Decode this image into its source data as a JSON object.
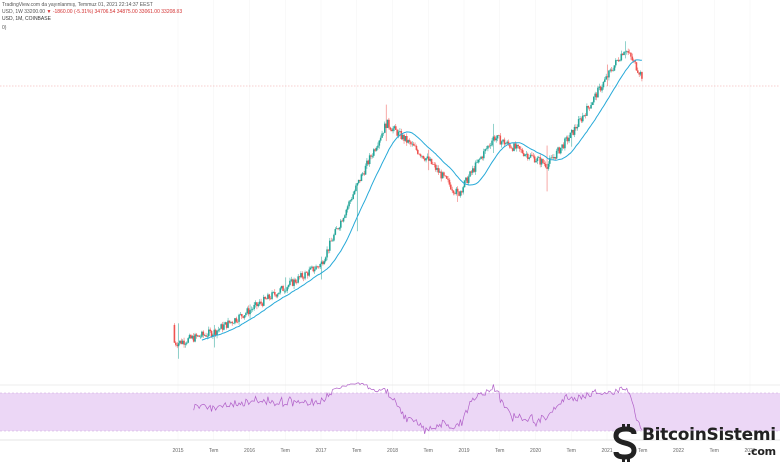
{
  "header": {
    "line1": "TradingView.com da yayınlanmış, Temmuz 01, 2021 22:14:37 EEST",
    "line2_prefix": "USD, 1W 33200.00",
    "line2_change": "▼ -1860.00 (-5.31%)",
    "line2_o": "34706.54",
    "line2_h": "34875.00",
    "line2_l": "33061.00",
    "line2_c": "33208.83",
    "line3": "USD, 1M, COINBASE",
    "line4": "0)"
  },
  "chart_data": {
    "type": "candlestick",
    "title": "",
    "xlabel": "",
    "ylabel": "",
    "y_scale": "log",
    "interval": "1W",
    "exchange": "COINBASE",
    "last_price_line": 33200,
    "x_ticks": [
      "2015",
      "Tem",
      "2016",
      "Tem",
      "2017",
      "Tem",
      "2018",
      "Tem",
      "2019",
      "Tem",
      "2020",
      "Tem",
      "2021",
      "Tem",
      "2022",
      "Tem",
      "2023"
    ],
    "ohlc_approx": [
      {
        "t": "2015-01",
        "o": 320,
        "h": 330,
        "l": 170,
        "c": 230
      },
      {
        "t": "2015-07",
        "o": 260,
        "h": 320,
        "l": 210,
        "c": 280
      },
      {
        "t": "2016-01",
        "o": 430,
        "h": 470,
        "l": 360,
        "c": 420
      },
      {
        "t": "2016-07",
        "o": 620,
        "h": 780,
        "l": 580,
        "c": 650
      },
      {
        "t": "2017-01",
        "o": 960,
        "h": 1150,
        "l": 750,
        "c": 1000
      },
      {
        "t": "2017-07",
        "o": 2500,
        "h": 4500,
        "l": 1850,
        "c": 4300
      },
      {
        "t": "2017-12",
        "o": 11000,
        "h": 19800,
        "l": 10000,
        "c": 14000
      },
      {
        "t": "2018-07",
        "o": 6400,
        "h": 8500,
        "l": 5800,
        "c": 7000
      },
      {
        "t": "2018-12",
        "o": 4000,
        "h": 4300,
        "l": 3200,
        "c": 3700
      },
      {
        "t": "2019-06",
        "o": 8500,
        "h": 13800,
        "l": 8000,
        "c": 10800
      },
      {
        "t": "2020-03",
        "o": 8000,
        "h": 9200,
        "l": 3900,
        "c": 6400
      },
      {
        "t": "2020-07",
        "o": 9200,
        "h": 11500,
        "l": 9000,
        "c": 11300
      },
      {
        "t": "2021-01",
        "o": 29000,
        "h": 41900,
        "l": 28000,
        "c": 33000
      },
      {
        "t": "2021-04",
        "o": 58000,
        "h": 64800,
        "l": 47000,
        "c": 57000
      },
      {
        "t": "2021-07",
        "o": 34700,
        "h": 34875,
        "l": 33061,
        "c": 33208
      }
    ],
    "indicators": [
      {
        "name": "",
        "type": "moving-average",
        "color": "#26a9d8"
      },
      {
        "name": "",
        "type": "oscillator",
        "panel": "lower",
        "band": [
          30,
          70
        ],
        "color": "#b05fc8",
        "band_color": "#ecd7f6"
      }
    ],
    "colors": {
      "up": "#26a69a",
      "down": "#ef5350",
      "last_price_line": "#f0a0a0"
    }
  },
  "logo": {
    "name": "BitcoinSistemi",
    "sub": ".com"
  }
}
